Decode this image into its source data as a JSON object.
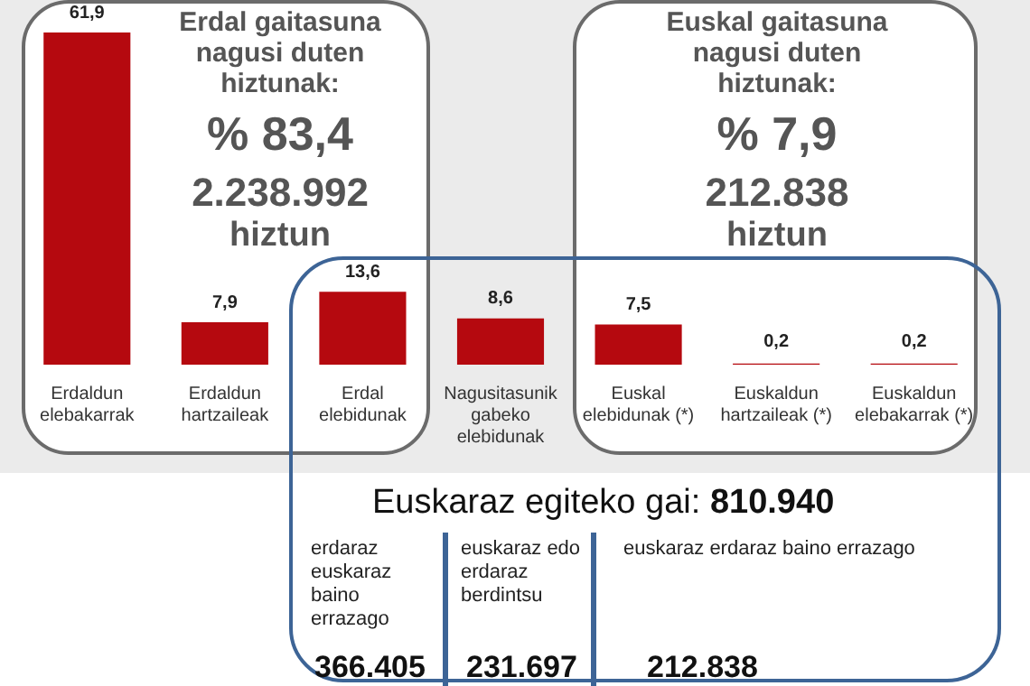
{
  "chart_data": {
    "type": "bar",
    "categories": [
      "Erdaldun elebakarrak",
      "Erdaldun hartzaileak",
      "Erdal elebidunak",
      "Nagusitasunik gabeko elebidunak",
      "Euskal elebidunak (*)",
      "Euskaldun hartzaileak (*)",
      "Euskaldun elebakarrak (*)"
    ],
    "values": [
      61.9,
      7.9,
      13.6,
      8.6,
      7.5,
      0.2,
      0.2
    ],
    "color": "#b5090f",
    "value_labels": [
      "61,9",
      "7,9",
      "13,6",
      "8,6",
      "7,5",
      "0,2",
      "0,2"
    ],
    "grid": false,
    "annotations": [
      "Erdal gaitasuna nagusi duten hiztunak:",
      "% 83,4",
      "2.238.992",
      "hiztun",
      "Euskal gaitasuna nagusi duten hiztunak:",
      "% 7,9",
      "212.838",
      "hiztun",
      "Euskaraz egiteko gai:",
      "810.940",
      "erdaraz euskaraz baino errazago",
      "366.405",
      "euskaraz edo erdaraz berdintsu",
      "231.697",
      "euskaraz erdaraz baino errazago",
      "212.838"
    ]
  }
}
